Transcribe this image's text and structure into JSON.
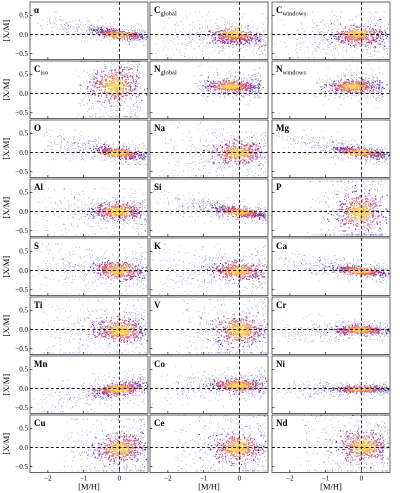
{
  "chart_data": {
    "type": "density-scatter",
    "xlabel": "[M/H]",
    "ylabel": "[X/M]",
    "xlim": [
      -2.5,
      0.8
    ],
    "ylim": [
      -0.65,
      0.85
    ],
    "xticks": [
      -2,
      -1,
      0
    ],
    "xtick_labels": [
      "−2",
      "−1",
      "0"
    ],
    "yticks": [
      -0.5,
      0.0,
      0.5
    ],
    "ytick_labels": [
      "−0.5",
      "0.0",
      "0.5"
    ],
    "reference_lines": {
      "x": 0,
      "y": 0,
      "style": "dashed"
    },
    "colormap": [
      "#2d0f8a",
      "#5a1f9e",
      "#8a2a9a",
      "#b83a86",
      "#de5a6a",
      "#f18a4e",
      "#fbbe45",
      "#fbe86a"
    ],
    "panels": [
      {
        "name": "α",
        "sub": "",
        "spread": 0.06,
        "slope": -0.11,
        "intercept": 0.02,
        "curve": 0.02,
        "xmin": -2.45,
        "xmax": 0.75,
        "ymin": -0.3,
        "ymax": 0.6,
        "core_x": -0.05,
        "core_y": 0.01
      },
      {
        "name": "C",
        "sub": "global",
        "spread": 0.13,
        "slope": -0.05,
        "intercept": -0.05,
        "curve": -0.05,
        "xmin": -2.45,
        "xmax": 0.75,
        "ymin": -0.6,
        "ymax": 0.6,
        "core_x": -0.15,
        "core_y": 0.05
      },
      {
        "name": "C",
        "sub": "windows",
        "spread": 0.15,
        "slope": -0.02,
        "intercept": -0.02,
        "curve": -0.05,
        "xmin": -2.45,
        "xmax": 0.75,
        "ymin": -0.6,
        "ymax": 0.6,
        "core_x": -0.1,
        "core_y": 0.04
      },
      {
        "name": "C",
        "sub": "iso",
        "spread": 0.3,
        "slope": 0.0,
        "intercept": 0.2,
        "curve": 0.0,
        "xmin": -1.35,
        "xmax": 0.6,
        "ymin": -0.6,
        "ymax": 0.85,
        "core_x": -0.15,
        "core_y": 0.2
      },
      {
        "name": "N",
        "sub": "global",
        "spread": 0.1,
        "slope": 0.0,
        "intercept": 0.2,
        "curve": 0.0,
        "xmin": -1.35,
        "xmax": 0.6,
        "ymin": -0.6,
        "ymax": 0.75,
        "core_x": -0.25,
        "core_y": 0.2
      },
      {
        "name": "N",
        "sub": "windows",
        "spread": 0.1,
        "slope": 0.0,
        "intercept": 0.2,
        "curve": 0.0,
        "xmin": -1.35,
        "xmax": 0.6,
        "ymin": -0.6,
        "ymax": 0.75,
        "core_x": -0.25,
        "core_y": 0.2
      },
      {
        "name": "O",
        "sub": "",
        "spread": 0.08,
        "slope": -0.12,
        "intercept": 0.0,
        "curve": 0.02,
        "xmin": -2.45,
        "xmax": 0.75,
        "ymin": -0.3,
        "ymax": 0.6,
        "core_x": -0.05,
        "core_y": 0.0
      },
      {
        "name": "Na",
        "sub": "",
        "spread": 0.18,
        "slope": 0.0,
        "intercept": 0.0,
        "curve": -0.04,
        "xmin": -2.45,
        "xmax": 0.75,
        "ymin": -0.6,
        "ymax": 0.8,
        "core_x": -0.05,
        "core_y": 0.0
      },
      {
        "name": "Mg",
        "sub": "",
        "spread": 0.07,
        "slope": -0.12,
        "intercept": 0.02,
        "curve": 0.02,
        "xmin": -2.45,
        "xmax": 0.75,
        "ymin": -0.3,
        "ymax": 0.6,
        "core_x": -0.05,
        "core_y": 0.02
      },
      {
        "name": "Al",
        "sub": "",
        "spread": 0.14,
        "slope": -0.02,
        "intercept": 0.02,
        "curve": -0.04,
        "xmin": -2.45,
        "xmax": 0.75,
        "ymin": -0.6,
        "ymax": 0.6,
        "core_x": -0.05,
        "core_y": 0.02
      },
      {
        "name": "Si",
        "sub": "",
        "spread": 0.07,
        "slope": -0.12,
        "intercept": 0.0,
        "curve": 0.01,
        "xmin": -2.45,
        "xmax": 0.75,
        "ymin": -0.3,
        "ymax": 0.5,
        "core_x": 0.0,
        "core_y": 0.0
      },
      {
        "name": "P",
        "sub": "",
        "spread": 0.3,
        "slope": 0.0,
        "intercept": 0.0,
        "curve": 0.0,
        "xmin": -1.55,
        "xmax": 0.6,
        "ymin": -0.6,
        "ymax": 0.8,
        "core_x": -0.05,
        "core_y": 0.0
      },
      {
        "name": "S",
        "sub": "",
        "spread": 0.14,
        "slope": -0.08,
        "intercept": 0.02,
        "curve": -0.02,
        "xmin": -2.45,
        "xmax": 0.75,
        "ymin": -0.6,
        "ymax": 0.7,
        "core_x": -0.05,
        "core_y": 0.02
      },
      {
        "name": "K",
        "sub": "",
        "spread": 0.14,
        "slope": -0.07,
        "intercept": 0.0,
        "curve": -0.03,
        "xmin": -2.45,
        "xmax": 0.75,
        "ymin": -0.6,
        "ymax": 0.7,
        "core_x": -0.05,
        "core_y": 0.0
      },
      {
        "name": "Ca",
        "sub": "",
        "spread": 0.07,
        "slope": -0.09,
        "intercept": 0.0,
        "curve": 0.01,
        "xmin": -2.45,
        "xmax": 0.75,
        "ymin": -0.3,
        "ymax": 0.5,
        "core_x": -0.05,
        "core_y": 0.0
      },
      {
        "name": "Ti",
        "sub": "",
        "spread": 0.2,
        "slope": -0.02,
        "intercept": 0.0,
        "curve": -0.04,
        "xmin": -2.45,
        "xmax": 0.75,
        "ymin": -0.6,
        "ymax": 0.8,
        "core_x": 0.0,
        "core_y": 0.0
      },
      {
        "name": "V",
        "sub": "",
        "spread": 0.24,
        "slope": 0.0,
        "intercept": 0.0,
        "curve": -0.03,
        "xmin": -1.9,
        "xmax": 0.75,
        "ymin": -0.6,
        "ymax": 0.8,
        "core_x": 0.0,
        "core_y": 0.0
      },
      {
        "name": "Cr",
        "sub": "",
        "spread": 0.07,
        "slope": 0.0,
        "intercept": 0.0,
        "curve": -0.02,
        "xmin": -2.45,
        "xmax": 0.75,
        "ymin": -0.3,
        "ymax": 0.4,
        "core_x": -0.05,
        "core_y": 0.0
      },
      {
        "name": "Mn",
        "sub": "",
        "spread": 0.1,
        "slope": 0.12,
        "intercept": 0.0,
        "curve": -0.03,
        "xmin": -2.45,
        "xmax": 0.7,
        "ymin": -0.6,
        "ymax": 0.6,
        "core_x": -0.05,
        "core_y": 0.0
      },
      {
        "name": "Co",
        "sub": "",
        "spread": 0.1,
        "slope": 0.0,
        "intercept": 0.1,
        "curve": -0.03,
        "xmin": -2.45,
        "xmax": 0.75,
        "ymin": -0.6,
        "ymax": 0.8,
        "core_x": -0.05,
        "core_y": 0.1
      },
      {
        "name": "Ni",
        "sub": "",
        "spread": 0.05,
        "slope": 0.0,
        "intercept": 0.0,
        "curve": -0.01,
        "xmin": -2.45,
        "xmax": 0.75,
        "ymin": -0.25,
        "ymax": 0.3,
        "core_x": -0.05,
        "core_y": 0.0
      },
      {
        "name": "Cu",
        "sub": "",
        "spread": 0.22,
        "slope": 0.1,
        "intercept": 0.0,
        "curve": -0.04,
        "xmin": -1.7,
        "xmax": 0.7,
        "ymin": -0.6,
        "ymax": 0.75,
        "core_x": 0.0,
        "core_y": 0.0
      },
      {
        "name": "Ce",
        "sub": "",
        "spread": 0.24,
        "slope": 0.0,
        "intercept": 0.0,
        "curve": 0.0,
        "xmin": -2.0,
        "xmax": 0.75,
        "ymin": -0.6,
        "ymax": 0.85,
        "core_x": -0.05,
        "core_y": 0.0
      },
      {
        "name": "Nd",
        "sub": "",
        "spread": 0.26,
        "slope": 0.0,
        "intercept": 0.05,
        "curve": 0.0,
        "xmin": -1.8,
        "xmax": 0.75,
        "ymin": -0.6,
        "ymax": 0.85,
        "core_x": 0.05,
        "core_y": 0.05
      }
    ]
  }
}
